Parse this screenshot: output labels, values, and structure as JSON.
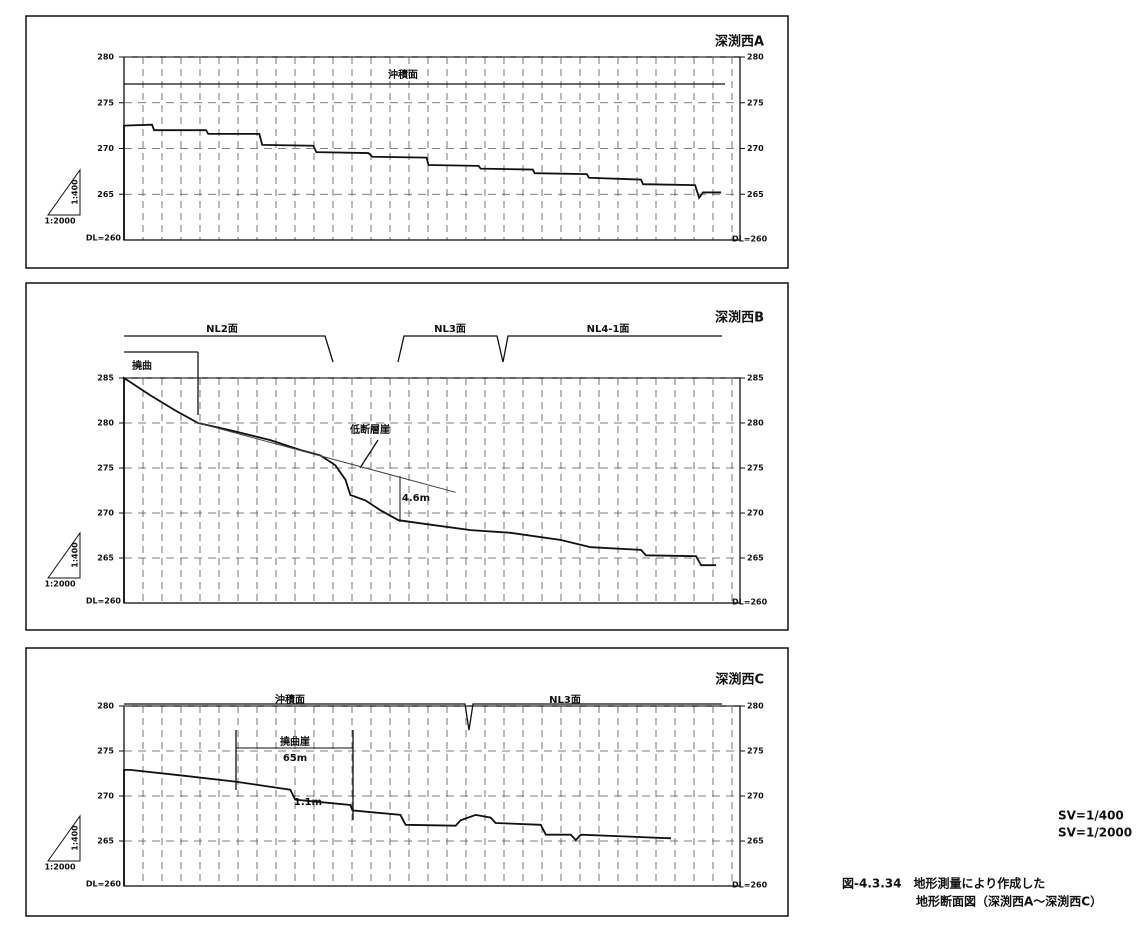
{
  "chart_data": [
    {
      "type": "line",
      "title": "深渕西A",
      "xlim": [
        0,
        336
      ],
      "ylim": [
        260,
        280
      ],
      "yticks": [
        265,
        270,
        275,
        280
      ],
      "grid": true,
      "datum_label": "DL=260",
      "scale_labels": [
        "1:400",
        "1:2000"
      ],
      "annotations": [
        "沖積面"
      ],
      "series": [
        {
          "color": "#111111",
          "x": [
            0,
            0,
            15.3,
            16.4,
            44.8,
            45.9,
            73.8,
            75.4,
            103.3,
            104.9,
            133.3,
            135.5,
            165.0,
            166.1,
            193.4,
            194.5,
            223.0,
            224.0,
            252.5,
            253.6,
            282.0,
            283.1,
            311.5,
            313.7,
            315.8,
            325.7
          ],
          "values": [
            260,
            272.5,
            272.6,
            272.0,
            272.0,
            271.6,
            271.6,
            270.4,
            270.3,
            269.6,
            269.5,
            269.1,
            269.0,
            268.2,
            268.1,
            267.8,
            267.7,
            267.3,
            267.2,
            266.8,
            266.6,
            266.1,
            266.0,
            264.6,
            265.2,
            265.2
          ]
        }
      ]
    },
    {
      "type": "line",
      "title": "深渕西B",
      "xlim": [
        0,
        336
      ],
      "ylim": [
        260,
        285
      ],
      "yticks": [
        265,
        270,
        275,
        280,
        285
      ],
      "grid": true,
      "datum_label": "DL=260",
      "scale_labels": [
        "1:400",
        "1:2000"
      ],
      "annotations": [
        "NL2面",
        "NL3面",
        "NL4-1面",
        "撓曲",
        "低断層崖",
        "4.6m"
      ],
      "series": [
        {
          "color": "#111111",
          "x": [
            0,
            0,
            14.2,
            27.9,
            40.4,
            57.9,
            79.8,
            96.2,
            107.1,
            115.3,
            120.8,
            123.5,
            131.7,
            139.9,
            149.7,
            167.2,
            189.1,
            210.9,
            238.3,
            254.6,
            282.0,
            284.7,
            312.0,
            314.8,
            323.0
          ],
          "values": [
            260,
            285,
            283.1,
            281.4,
            280.0,
            279.2,
            278.1,
            277.0,
            276.4,
            275.3,
            273.7,
            272.0,
            271.4,
            270.3,
            269.2,
            268.7,
            268.1,
            267.8,
            267.0,
            266.2,
            265.9,
            265.3,
            265.2,
            264.2,
            264.2
          ]
        },
        {
          "color": "#444444",
          "x": [
            38.8,
            180.9
          ],
          "values": [
            280.1,
            272.3
          ]
        }
      ]
    },
    {
      "type": "line",
      "title": "深渕西C",
      "xlim": [
        0,
        336
      ],
      "ylim": [
        260,
        280
      ],
      "yticks": [
        265,
        270,
        275,
        280
      ],
      "grid": true,
      "datum_label": "DL=260",
      "scale_labels": [
        "1:400",
        "1:2000"
      ],
      "annotations": [
        "沖積面",
        "NL3面",
        "撓曲崖",
        "65m",
        "1.1m"
      ],
      "series": [
        {
          "color": "#111111",
          "x": [
            0,
            0,
            3.3,
            30.6,
            60.7,
            90.7,
            93.4,
            123.5,
            124.6,
            150.8,
            153.6,
            180.9,
            183.6,
            191.8,
            200.0,
            202.7,
            227.3,
            230.1,
            243.7,
            246.4,
            249.2,
            298.4
          ],
          "values": [
            260,
            272.9,
            272.9,
            272.3,
            271.6,
            270.7,
            269.6,
            269.0,
            268.4,
            267.9,
            266.8,
            266.7,
            267.3,
            267.9,
            267.6,
            267.0,
            266.8,
            265.7,
            265.7,
            265.1,
            265.7,
            265.3
          ]
        }
      ]
    }
  ],
  "scale_note": [
    "SV=1/400",
    "SV=1/2000"
  ],
  "caption": [
    "図-4.3.34　地形測量により作成した",
    "地形断面図（深渕西A～深渕西C）"
  ]
}
